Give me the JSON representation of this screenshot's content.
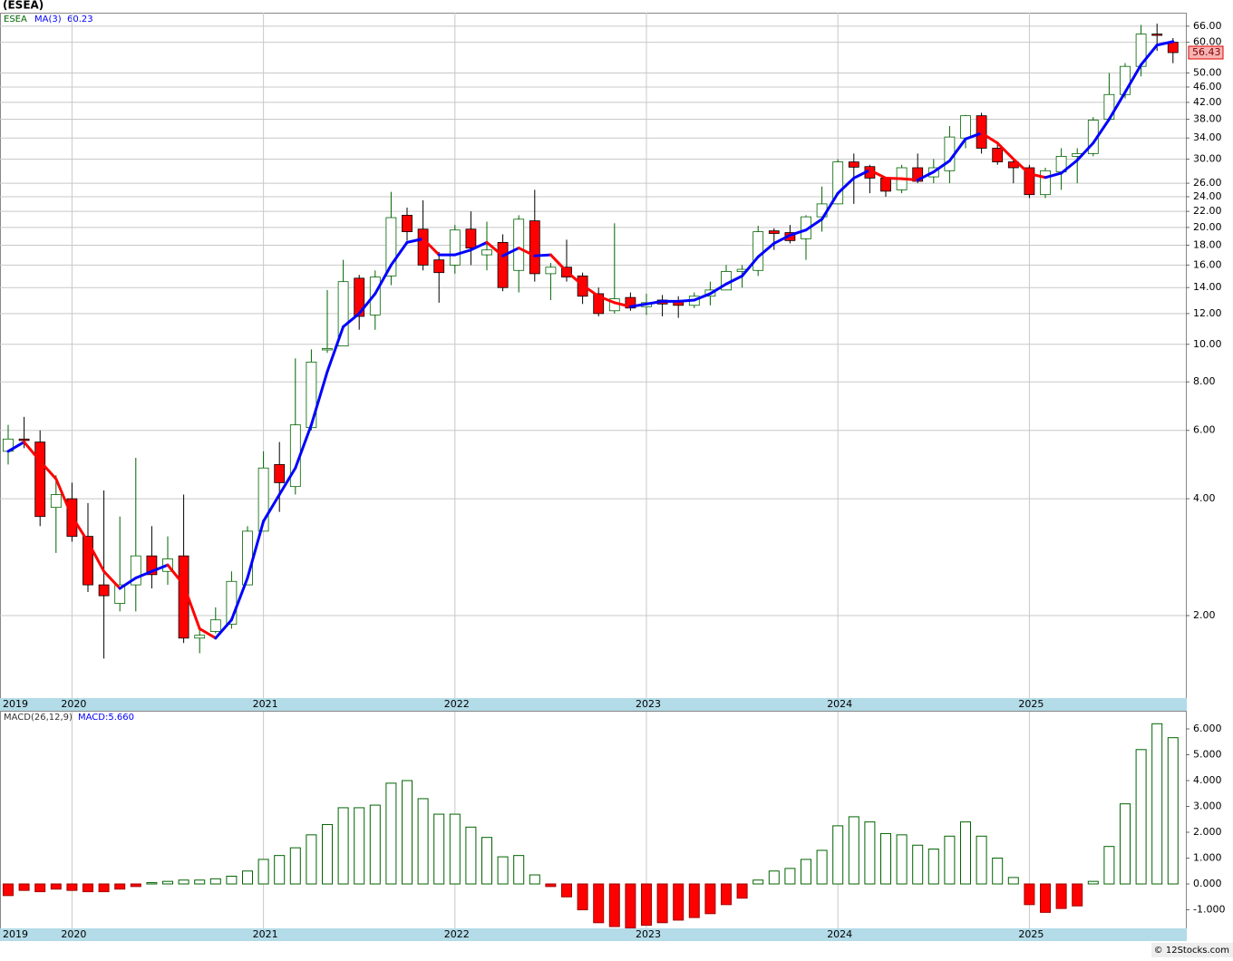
{
  "footer": "© 12Stocks.com",
  "chart_data": [
    {
      "type": "candlestick",
      "title": "(ESEA)",
      "symbol": "ESEA",
      "log_scale": true,
      "grid": true,
      "categories": [
        "2019",
        null,
        null,
        null,
        "2020",
        null,
        null,
        null,
        null,
        null,
        null,
        null,
        null,
        null,
        null,
        null,
        "2021",
        null,
        null,
        null,
        null,
        null,
        null,
        null,
        null,
        null,
        null,
        null,
        "2022",
        null,
        null,
        null,
        null,
        null,
        null,
        null,
        null,
        null,
        null,
        null,
        "2023",
        null,
        null,
        null,
        null,
        null,
        null,
        null,
        null,
        null,
        null,
        null,
        "2024",
        null,
        null,
        null,
        null,
        null,
        null,
        null,
        null,
        null,
        null,
        null,
        "2025",
        null,
        null,
        null,
        null,
        null,
        null,
        null,
        null,
        null
      ],
      "open": [
        5.3,
        5.7,
        5.6,
        3.8,
        4.0,
        3.2,
        2.4,
        2.15,
        2.4,
        2.85,
        2.6,
        2.85,
        1.75,
        1.82,
        1.9,
        2.4,
        3.3,
        4.9,
        4.3,
        6.1,
        9.7,
        9.9,
        14.8,
        11.9,
        15.0,
        21.5,
        19.8,
        16.5,
        16.0,
        19.8,
        17.0,
        18.3,
        15.5,
        20.8,
        15.2,
        15.8,
        15.0,
        13.5,
        12.2,
        13.2,
        12.5,
        13.0,
        12.9,
        12.6,
        13.3,
        13.8,
        15.4,
        15.5,
        19.6,
        19.4,
        18.7,
        21.3,
        23.0,
        29.5,
        28.7,
        26.8,
        25.0,
        28.5,
        27.0,
        28.0,
        34.0,
        38.8,
        32.0,
        29.5,
        28.5,
        24.3,
        27.8,
        30.5,
        31.0,
        38.0,
        44.0,
        52.0,
        63.0,
        60.0
      ],
      "high": [
        6.2,
        6.5,
        6.0,
        4.6,
        4.4,
        3.9,
        4.2,
        3.6,
        5.1,
        3.4,
        3.2,
        4.1,
        1.85,
        2.1,
        2.6,
        3.4,
        5.3,
        5.6,
        9.2,
        9.7,
        13.8,
        16.5,
        15.1,
        15.5,
        24.7,
        22.5,
        23.5,
        17.3,
        20.3,
        22.0,
        20.7,
        19.2,
        21.5,
        25.0,
        16.2,
        18.6,
        15.3,
        14.0,
        20.5,
        13.6,
        13.5,
        13.4,
        13.3,
        13.6,
        14.5,
        16.0,
        16.0,
        20.2,
        19.9,
        20.3,
        21.5,
        25.5,
        30.0,
        31.0,
        29.0,
        27.0,
        29.0,
        31.0,
        30.0,
        36.5,
        39.0,
        39.5,
        33.0,
        30.0,
        29.0,
        28.5,
        32.0,
        32.0,
        38.5,
        50.0,
        53.0,
        66.5,
        67.0,
        61.5
      ],
      "low": [
        4.9,
        5.4,
        3.4,
        2.9,
        3.1,
        2.3,
        1.55,
        2.05,
        2.05,
        2.35,
        2.4,
        1.7,
        1.6,
        1.8,
        1.85,
        2.4,
        3.3,
        3.7,
        4.1,
        6.0,
        9.5,
        9.9,
        10.9,
        10.9,
        14.2,
        18.5,
        15.5,
        12.8,
        15.2,
        16.0,
        15.5,
        13.7,
        13.6,
        14.5,
        13.0,
        14.5,
        12.7,
        11.8,
        12.0,
        12.2,
        11.9,
        11.8,
        11.7,
        12.4,
        12.6,
        13.9,
        14.0,
        15.0,
        17.5,
        18.2,
        16.5,
        19.5,
        23.0,
        23.0,
        24.5,
        24.0,
        24.5,
        26.0,
        26.0,
        26.0,
        32.0,
        31.0,
        29.0,
        26.0,
        23.8,
        23.8,
        25.0,
        26.0,
        30.5,
        38.0,
        43.0,
        49.0,
        57.0,
        53.0
      ],
      "close": [
        5.7,
        5.65,
        3.6,
        4.1,
        3.2,
        2.4,
        2.25,
        2.4,
        2.85,
        2.55,
        2.8,
        1.75,
        1.78,
        1.95,
        2.45,
        3.3,
        4.8,
        4.4,
        6.2,
        9.0,
        9.75,
        14.5,
        11.8,
        14.9,
        21.2,
        19.5,
        16.0,
        15.3,
        19.7,
        17.7,
        17.5,
        14.0,
        21.0,
        15.2,
        15.8,
        14.9,
        13.3,
        12.0,
        13.1,
        12.4,
        12.8,
        12.7,
        12.6,
        13.3,
        13.8,
        15.4,
        15.6,
        19.5,
        19.3,
        18.5,
        21.3,
        23.0,
        29.5,
        28.6,
        26.8,
        24.8,
        28.5,
        26.3,
        28.5,
        34.2,
        38.8,
        32.0,
        29.5,
        28.5,
        24.3,
        28.0,
        30.5,
        31.0,
        37.8,
        44.0,
        52.0,
        63.0,
        62.6,
        56.43
      ],
      "up_color": "#006400",
      "down_color": "#ff0000",
      "ma": {
        "name": "MA(3)",
        "up_color": "#0000ff",
        "down_color": "#ff0000",
        "values": [
          5.3,
          5.6,
          5.0,
          4.5,
          3.6,
          3.1,
          2.6,
          2.35,
          2.5,
          2.6,
          2.7,
          2.4,
          1.85,
          1.75,
          1.95,
          2.5,
          3.5,
          4.1,
          4.8,
          6.2,
          8.5,
          11.1,
          12.0,
          13.5,
          16.0,
          18.3,
          18.7,
          17.0,
          17.0,
          17.5,
          18.3,
          16.9,
          17.7,
          16.9,
          17.0,
          15.4,
          14.2,
          13.3,
          12.8,
          12.5,
          12.7,
          12.9,
          12.9,
          13.0,
          13.5,
          14.3,
          15.0,
          16.8,
          18.2,
          19.1,
          19.7,
          21.0,
          24.5,
          26.8,
          28.1,
          26.8,
          26.7,
          26.5,
          27.8,
          29.7,
          33.8,
          35.0,
          33.0,
          30.0,
          27.5,
          26.9,
          27.6,
          29.8,
          33.0,
          38.0,
          44.6,
          52.5,
          59.0,
          60.23
        ]
      },
      "ylim": [
        1.226,
        71.5
      ],
      "yticks": [
        {
          "value": 66,
          "label": "66.00"
        },
        {
          "value": 60,
          "label": "60.00"
        },
        {
          "value": 50,
          "label": "50.00"
        },
        {
          "value": 46,
          "label": "46.00"
        },
        {
          "value": 42,
          "label": "42.00"
        },
        {
          "value": 38,
          "label": "38.00"
        },
        {
          "value": 34,
          "label": "34.00"
        },
        {
          "value": 30,
          "label": "30.00"
        },
        {
          "value": 26,
          "label": "26.00"
        },
        {
          "value": 24,
          "label": "24.00"
        },
        {
          "value": 22,
          "label": "22.00"
        },
        {
          "value": 20,
          "label": "20.00"
        },
        {
          "value": 18,
          "label": "18.00"
        },
        {
          "value": 16,
          "label": "16.00"
        },
        {
          "value": 14,
          "label": "14.00"
        },
        {
          "value": 12,
          "label": "12.00"
        },
        {
          "value": 10,
          "label": "10.00"
        },
        {
          "value": 8,
          "label": "8.00"
        },
        {
          "value": 6,
          "label": "6.00"
        },
        {
          "value": 4,
          "label": "4.00"
        },
        {
          "value": 2,
          "label": "2.00"
        }
      ]
    },
    {
      "type": "bar",
      "title": "MACD(26,12,9)",
      "value_text": "MACD:5.660",
      "categories": [
        "2019",
        null,
        null,
        null,
        "2020",
        null,
        null,
        null,
        null,
        null,
        null,
        null,
        null,
        null,
        null,
        null,
        "2021",
        null,
        null,
        null,
        null,
        null,
        null,
        null,
        null,
        null,
        null,
        null,
        "2022",
        null,
        null,
        null,
        null,
        null,
        null,
        null,
        null,
        null,
        null,
        null,
        "2023",
        null,
        null,
        null,
        null,
        null,
        null,
        null,
        null,
        null,
        null,
        null,
        "2024",
        null,
        null,
        null,
        null,
        null,
        null,
        null,
        null,
        null,
        null,
        null,
        "2025",
        null,
        null,
        null,
        null,
        null,
        null,
        null,
        null,
        null
      ],
      "values": [
        -0.45,
        -0.25,
        -0.3,
        -0.2,
        -0.25,
        -0.3,
        -0.3,
        -0.2,
        -0.1,
        0.05,
        0.1,
        0.15,
        0.15,
        0.2,
        0.3,
        0.5,
        0.95,
        1.1,
        1.4,
        1.9,
        2.3,
        2.95,
        2.95,
        3.05,
        3.9,
        4.0,
        3.3,
        2.7,
        2.7,
        2.2,
        1.8,
        1.05,
        1.1,
        0.35,
        -0.1,
        -0.5,
        -1.0,
        -1.5,
        -1.65,
        -1.7,
        -1.6,
        -1.5,
        -1.4,
        -1.3,
        -1.15,
        -0.8,
        -0.55,
        0.15,
        0.5,
        0.6,
        0.95,
        1.3,
        2.25,
        2.6,
        2.4,
        1.95,
        1.9,
        1.5,
        1.35,
        1.85,
        2.4,
        1.85,
        1.0,
        0.25,
        -0.8,
        -1.1,
        -0.95,
        -0.85,
        0.1,
        1.45,
        3.1,
        5.2,
        6.2,
        5.66
      ],
      "up_color": "#006400",
      "down_color": "#ff0000",
      "ylim": [
        -1.719,
        6.667
      ],
      "yticks": [
        {
          "value": 6,
          "label": "6.000"
        },
        {
          "value": 5,
          "label": "5.000"
        },
        {
          "value": 4,
          "label": "4.000"
        },
        {
          "value": 3,
          "label": "3.000"
        },
        {
          "value": 2,
          "label": "2.000"
        },
        {
          "value": 1,
          "label": "1.000"
        },
        {
          "value": 0,
          "label": "0.000"
        },
        {
          "value": -1,
          "label": "-1.000"
        }
      ]
    }
  ]
}
